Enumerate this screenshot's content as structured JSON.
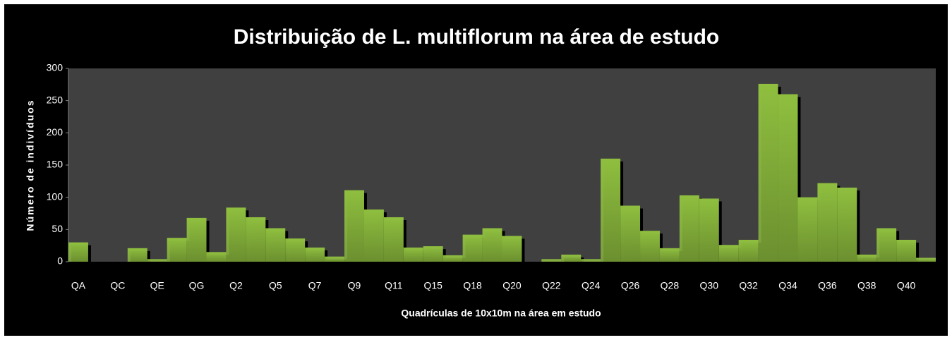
{
  "chart_data": {
    "type": "bar",
    "title": "Distribuição de L. multiflorum na área de estudo",
    "x_label": "Quadrículas de 10x10m na área em estudo",
    "y_label": "Número de indivíduos",
    "categories": [
      "QA",
      null,
      "QC",
      null,
      "QE",
      null,
      "QG",
      null,
      "Q2",
      null,
      "Q5",
      null,
      "Q7",
      null,
      "Q9",
      null,
      "Q11",
      null,
      "Q15",
      null,
      "Q18",
      null,
      "Q20",
      null,
      "Q22",
      null,
      "Q24",
      null,
      "Q26",
      null,
      "Q28",
      null,
      "Q30",
      null,
      "Q32",
      null,
      "Q34",
      null,
      "Q36",
      null,
      "Q38",
      null,
      "Q40",
      null
    ],
    "values": [
      30,
      0,
      0,
      21,
      4,
      37,
      68,
      15,
      84,
      69,
      52,
      36,
      22,
      8,
      111,
      81,
      69,
      22,
      24,
      10,
      42,
      52,
      40,
      0,
      4,
      11,
      4,
      160,
      87,
      48,
      21,
      103,
      98,
      26,
      34,
      276,
      260,
      100,
      122,
      115,
      11,
      52,
      34,
      6
    ],
    "color": "#8fbf3f",
    "ylim": [
      0,
      300
    ],
    "yticks": [
      0,
      50,
      100,
      150,
      200,
      250,
      300
    ],
    "grid": false
  }
}
